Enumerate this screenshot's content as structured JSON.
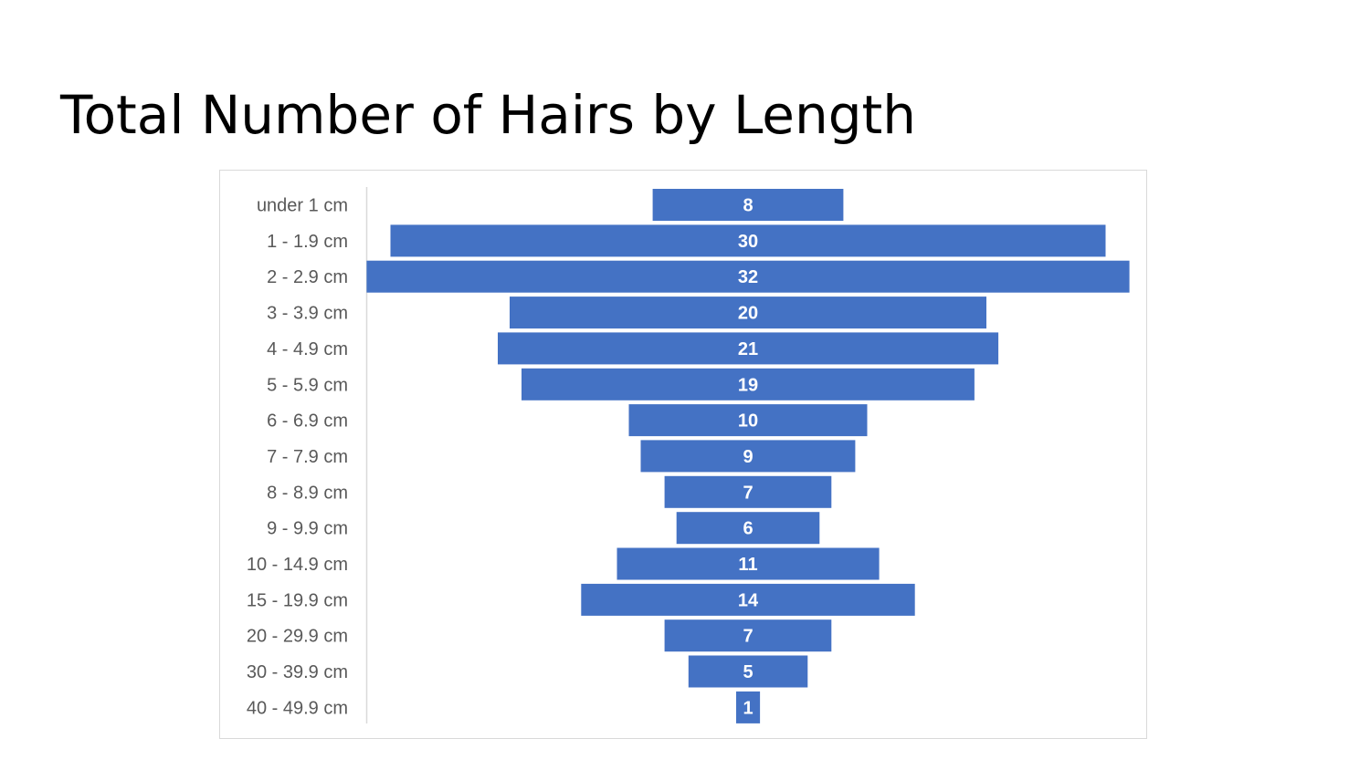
{
  "page": {
    "title": "Total Number of Hairs by Length"
  },
  "chart_data": {
    "type": "bar",
    "orientation": "horizontal",
    "style": "centered-funnel",
    "categories": [
      "under 1 cm",
      "1 - 1.9 cm",
      "2 - 2.9 cm",
      "3 - 3.9 cm",
      "4 - 4.9 cm",
      "5 - 5.9 cm",
      "6 - 6.9 cm",
      "7 - 7.9 cm",
      "8 - 8.9 cm",
      "9 - 9.9 cm",
      "10 - 14.9 cm",
      "15 - 19.9 cm",
      "20 - 29.9 cm",
      "30 - 39.9 cm",
      "40 - 49.9 cm"
    ],
    "values": [
      8,
      30,
      32,
      20,
      21,
      19,
      10,
      9,
      7,
      6,
      11,
      14,
      7,
      5,
      1
    ],
    "data_labels": true,
    "grid": false,
    "legend": "none",
    "bar_color": "#4472C4",
    "label_color": "#595959",
    "data_label_color": "#FFFFFF"
  }
}
